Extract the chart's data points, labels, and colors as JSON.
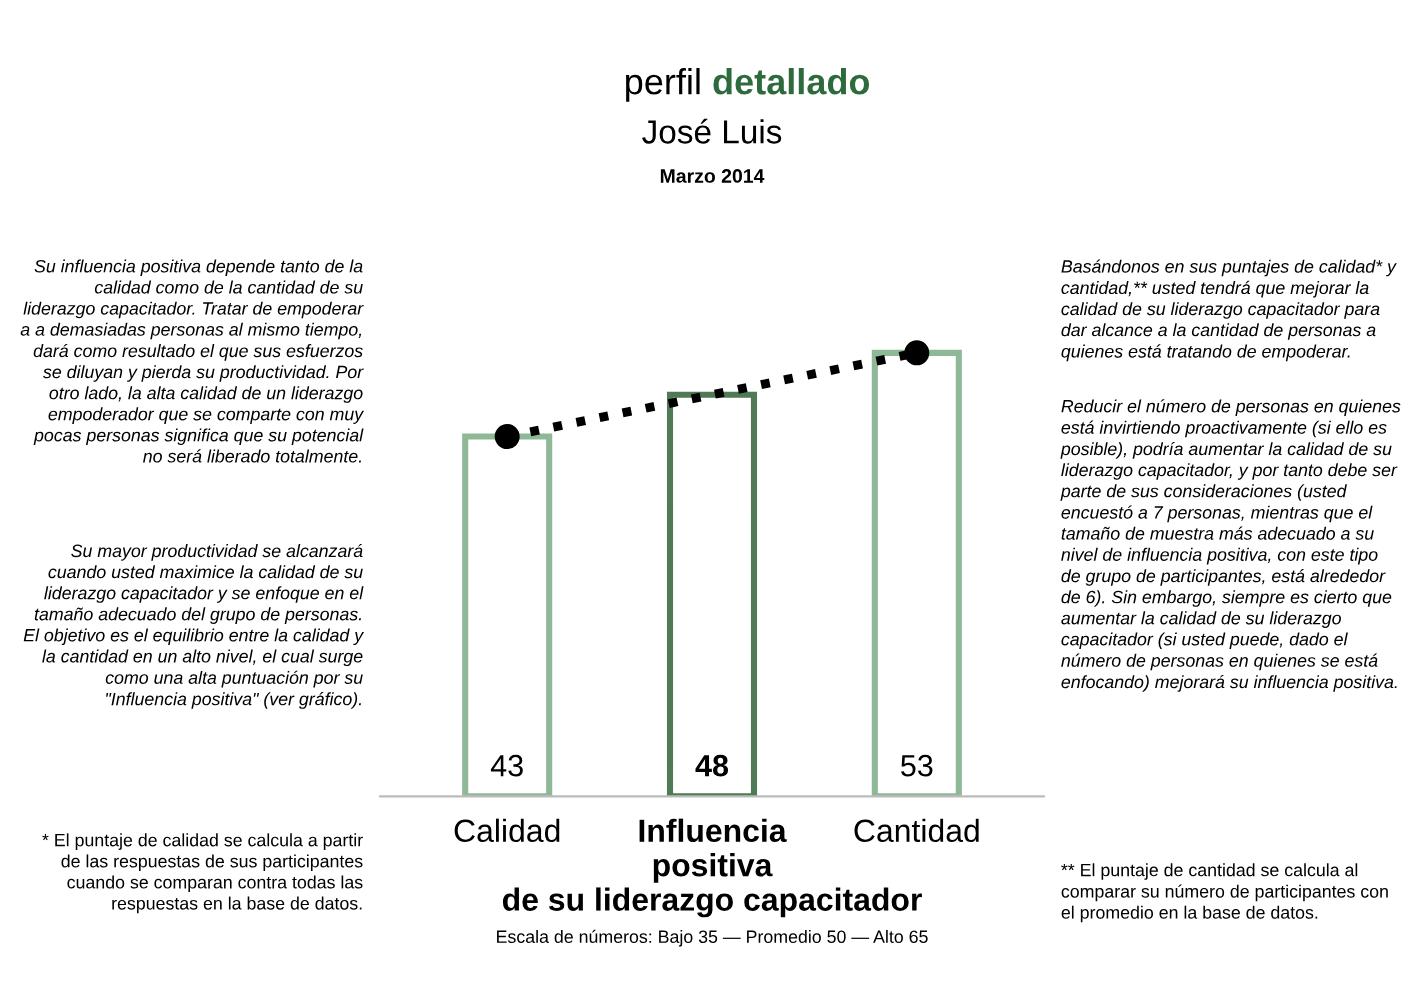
{
  "chart_data": {
    "type": "bar",
    "title": "perfil detallado",
    "subtitle": "José Luis",
    "categories": [
      "Calidad",
      "Influencia\npositiva\nde su liderazgo capacitador",
      "Cantidad"
    ],
    "values": [
      43,
      48,
      53
    ],
    "colors": [
      "#8fb897",
      "#4f7a55",
      "#8fb897"
    ],
    "value_labels": [
      "43",
      "48",
      "53"
    ],
    "series": [
      {
        "type": "line",
        "color": "#000000",
        "x": [
          "Calidad",
          "Cantidad"
        ],
        "values": [
          43,
          53
        ],
        "marker": "circle",
        "line_style": "dotted"
      }
    ],
    "annotations": [
      "Marzo 2014",
      "Su influencia positiva depende tanto de la\ncalidad como de la cantidad de su\nliderazgo capacitador. Tratar de empoderar\na a demasiadas personas al mismo tiempo,\ndará como resultado el que sus esfuerzos\nse diluyan y pierda su productividad. Por\notro lado, la alta calidad de un liderazgo\nempoderador que se comparte con muy\npocas personas significa que su potencial\nno será liberado totalmente.",
      "Su mayor productividad se alcanzará\ncuando usted maximice la calidad de su\nliderazgo capacitador y se enfoque en el\ntamaño adecuado del grupo de personas.\nEl objetivo es el equilibrio entre la calidad y\nla cantidad en un alto nivel, el cual surge\ncomo una alta puntuación por su\n\"Influencia positiva\" (ver gráfico).",
      "Basándonos en sus puntajes de calidad* y\ncantidad,** usted tendrá que mejorar la\ncalidad de su liderazgo capacitador para\ndar alcance a la cantidad de personas a\nquienes está tratando de empoderar.",
      "Reducir el número de personas en quienes\nestá invirtiendo proactivamente (si ello es\nposible), podría aumentar la calidad de su\nliderazgo capacitador, y por tanto debe ser\nparte de sus consideraciones (usted\nencuestó a 7 personas, mientras que el\ntamaño de muestra más adecuado a su\nnivel de influencia positiva, con este tipo\nde grupo de participantes, está alrededor\nde 6). Sin embargo, siempre es cierto que\naumentar la calidad de su liderazgo\ncapacitador (si usted puede, dado el\nnúmero de personas en quienes se está\nenfocando) mejorará su influencia positiva.",
      "* El puntaje de calidad se calcula a partir\nde las respuestas de sus participantes\ncuando se comparan contra todas las\nrespuestas en la base de datos.",
      "** El puntaje de cantidad se calcula al\ncomparar su número de participantes con\nel promedio en la base de datos.",
      "Escala de números: Bajo 35 — Promedio 50 — Alto 65"
    ]
  }
}
